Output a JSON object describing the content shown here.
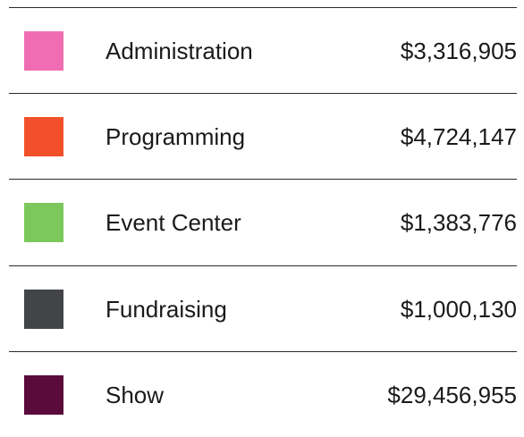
{
  "rows": [
    {
      "label": "Administration",
      "amount": "$3,316,905",
      "color": "#f16db3"
    },
    {
      "label": "Programming",
      "amount": "$4,724,147",
      "color": "#f2502a"
    },
    {
      "label": "Event Center",
      "amount": "$1,383,776",
      "color": "#7dc85c"
    },
    {
      "label": "Fundraising",
      "amount": "$1,000,130",
      "color": "#434446"
    },
    {
      "label": "Show",
      "amount": "$29,456,955",
      "color": "#5a0a3b"
    }
  ]
}
